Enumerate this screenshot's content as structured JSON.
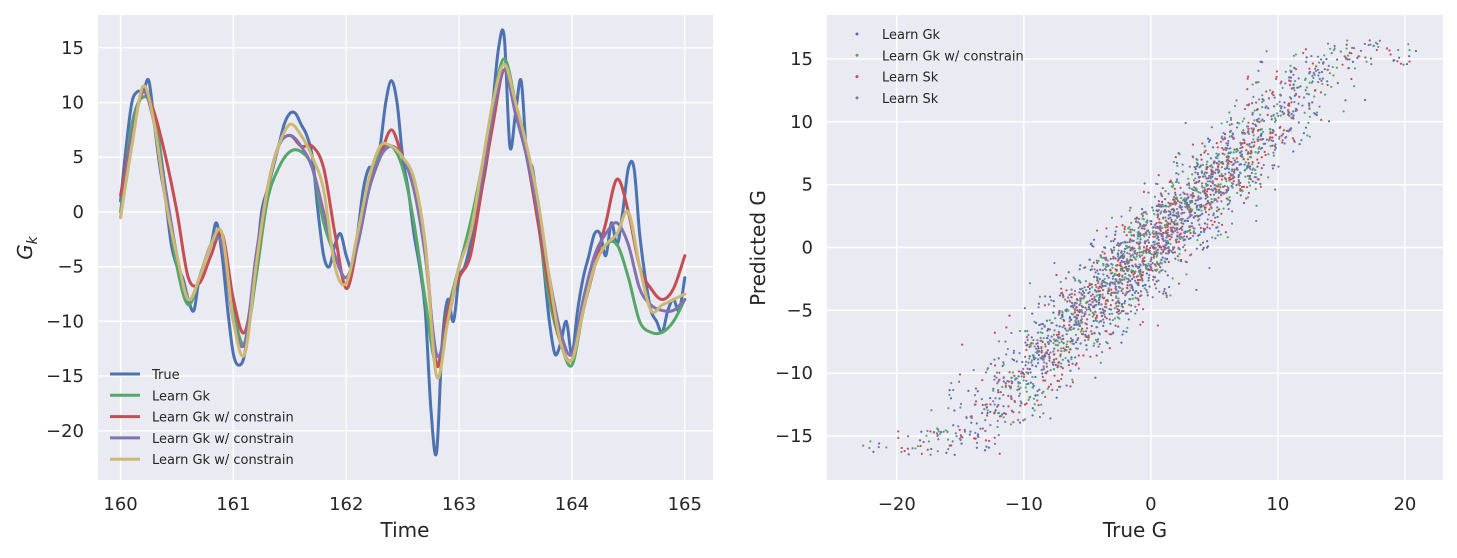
{
  "chart_data": [
    {
      "type": "line",
      "ylabel_main": "G",
      "ylabel_sub": "k",
      "xlabel": "Time",
      "xlim": [
        159.8,
        165.25
      ],
      "ylim": [
        -24.5,
        18
      ],
      "xticks": [
        160,
        161,
        162,
        163,
        164,
        165
      ],
      "yticks": [
        15,
        10,
        5,
        0,
        -5,
        -10,
        -15,
        -20
      ],
      "grid": true,
      "legend_position": "lower-left",
      "series": [
        {
          "name": "True",
          "color": "#4c72b0",
          "x": [
            160.0,
            160.05,
            160.1,
            160.15,
            160.2,
            160.25,
            160.3,
            160.35,
            160.4,
            160.45,
            160.5,
            160.55,
            160.6,
            160.65,
            160.7,
            160.8,
            160.85,
            160.9,
            160.95,
            161.0,
            161.05,
            161.1,
            161.15,
            161.2,
            161.25,
            161.3,
            161.35,
            161.4,
            161.45,
            161.5,
            161.55,
            161.6,
            161.65,
            161.7,
            161.75,
            161.8,
            161.85,
            161.9,
            161.95,
            162.0,
            162.05,
            162.1,
            162.15,
            162.2,
            162.25,
            162.3,
            162.35,
            162.4,
            162.45,
            162.5,
            162.55,
            162.6,
            162.65,
            162.7,
            162.75,
            162.8,
            162.85,
            162.9,
            162.95,
            163.0,
            163.05,
            163.1,
            163.15,
            163.2,
            163.25,
            163.3,
            163.35,
            163.4,
            163.45,
            163.5,
            163.55,
            163.6,
            163.65,
            163.7,
            163.75,
            163.8,
            163.85,
            163.9,
            163.95,
            164.0,
            164.05,
            164.1,
            164.15,
            164.2,
            164.25,
            164.3,
            164.35,
            164.4,
            164.45,
            164.5,
            164.55,
            164.6,
            164.65,
            164.7,
            164.75,
            164.8,
            164.85,
            164.9,
            164.95,
            165.0
          ],
          "y": [
            1,
            6,
            10,
            11,
            11,
            12,
            8,
            4,
            1,
            -3,
            -5,
            -6,
            -8,
            -9,
            -6,
            -3,
            -1,
            -4,
            -9,
            -13,
            -14,
            -13,
            -9,
            -5,
            0,
            2,
            4,
            6,
            8,
            9,
            9,
            8,
            7,
            5,
            0,
            -4,
            -5,
            -3,
            -2,
            -4,
            -5,
            -2,
            2,
            4,
            4,
            6,
            10,
            12,
            10,
            5,
            2,
            -2,
            -5,
            -9,
            -18,
            -22,
            -12,
            -8,
            -10,
            -6,
            -5,
            -3,
            -1,
            2,
            5,
            10,
            15,
            16,
            6,
            9,
            12,
            5,
            4,
            0,
            -5,
            -10,
            -13,
            -12,
            -10,
            -13,
            -9,
            -6,
            -4,
            -2,
            -2,
            -4,
            -1,
            -3,
            0,
            4,
            4,
            -2,
            -6,
            -9,
            -10,
            -11,
            -9,
            -8,
            -9,
            -6
          ]
        },
        {
          "name": "Learn Gk",
          "color": "#55a868",
          "x": [
            160.0,
            160.1,
            160.2,
            160.3,
            160.4,
            160.5,
            160.6,
            160.7,
            160.8,
            160.9,
            161.0,
            161.1,
            161.2,
            161.3,
            161.4,
            161.5,
            161.6,
            161.7,
            161.8,
            161.9,
            162.0,
            162.1,
            162.2,
            162.3,
            162.4,
            162.5,
            162.6,
            162.7,
            162.8,
            162.9,
            163.0,
            163.1,
            163.2,
            163.3,
            163.4,
            163.5,
            163.6,
            163.7,
            163.8,
            163.9,
            164.0,
            164.1,
            164.2,
            164.3,
            164.4,
            164.5,
            164.6,
            164.7,
            164.8,
            164.9,
            165.0
          ],
          "y": [
            0,
            8,
            10.5,
            9,
            2,
            -5,
            -8.5,
            -6,
            -3,
            -2,
            -9,
            -12,
            -6,
            1,
            4,
            5.5,
            5.5,
            4,
            -1,
            -4,
            -6,
            -3,
            2,
            5.5,
            6,
            4,
            -1,
            -8,
            -14,
            -9,
            -5,
            -1,
            4,
            10,
            14,
            10,
            5,
            -1,
            -8,
            -12,
            -14,
            -9,
            -5,
            -3,
            -3,
            -6,
            -10,
            -11,
            -11,
            -10,
            -8
          ]
        },
        {
          "name": "Learn Gk w/ constrain",
          "color": "#c44e52",
          "x": [
            160.0,
            160.1,
            160.2,
            160.3,
            160.4,
            160.5,
            160.6,
            160.7,
            160.8,
            160.9,
            161.0,
            161.1,
            161.2,
            161.3,
            161.4,
            161.5,
            161.6,
            161.7,
            161.8,
            161.9,
            162.0,
            162.1,
            162.2,
            162.3,
            162.4,
            162.5,
            162.6,
            162.7,
            162.8,
            162.9,
            163.0,
            163.1,
            163.2,
            163.3,
            163.4,
            163.5,
            163.6,
            163.7,
            163.8,
            163.9,
            164.0,
            164.1,
            164.2,
            164.3,
            164.4,
            164.5,
            164.6,
            164.7,
            164.8,
            164.9,
            165.0
          ],
          "y": [
            1.5,
            7,
            11,
            9,
            5,
            0,
            -6,
            -6.5,
            -4,
            -2,
            -8,
            -11,
            -5,
            2,
            6,
            7,
            6,
            6,
            4,
            -2,
            -7,
            -3,
            2,
            5,
            7.5,
            5,
            3,
            -3,
            -14,
            -9,
            -6,
            -4,
            2,
            8,
            13,
            9,
            5,
            -1,
            -7,
            -12,
            -13.5,
            -9,
            -5,
            -1,
            3,
            0,
            -5,
            -7,
            -8,
            -7,
            -4
          ]
        },
        {
          "name": "Learn Gk w/ constrain",
          "color": "#8172b2",
          "x": [
            160.0,
            160.1,
            160.2,
            160.3,
            160.4,
            160.5,
            160.6,
            160.7,
            160.8,
            160.9,
            161.0,
            161.1,
            161.2,
            161.3,
            161.4,
            161.5,
            161.6,
            161.7,
            161.8,
            161.9,
            162.0,
            162.1,
            162.2,
            162.3,
            162.4,
            162.5,
            162.6,
            162.7,
            162.8,
            162.9,
            163.0,
            163.1,
            163.2,
            163.3,
            163.4,
            163.5,
            163.6,
            163.7,
            163.8,
            163.9,
            164.0,
            164.1,
            164.2,
            164.3,
            164.4,
            164.5,
            164.6,
            164.7,
            164.8,
            164.9,
            165.0
          ],
          "y": [
            -0.5,
            7,
            11,
            8,
            2,
            -4,
            -8,
            -6,
            -3,
            -3,
            -10,
            -12,
            -4,
            2,
            6,
            7,
            6,
            4,
            0,
            -4,
            -6,
            -3,
            2,
            5,
            6,
            5,
            2,
            -4,
            -13,
            -10,
            -5,
            -2,
            3,
            9,
            13,
            9,
            5,
            0,
            -6,
            -11,
            -13,
            -8,
            -4,
            -2,
            -1,
            -3,
            -7,
            -8.5,
            -9,
            -9,
            -8
          ]
        },
        {
          "name": "Learn Gk w/ constrain",
          "color": "#ccb974",
          "x": [
            160.0,
            160.1,
            160.2,
            160.3,
            160.4,
            160.5,
            160.6,
            160.7,
            160.8,
            160.9,
            161.0,
            161.1,
            161.2,
            161.3,
            161.4,
            161.5,
            161.6,
            161.7,
            161.8,
            161.9,
            162.0,
            162.1,
            162.2,
            162.3,
            162.4,
            162.5,
            162.6,
            162.7,
            162.8,
            162.9,
            163.0,
            163.1,
            163.2,
            163.3,
            163.4,
            163.5,
            163.6,
            163.7,
            163.8,
            163.9,
            164.0,
            164.1,
            164.2,
            164.3,
            164.4,
            164.5,
            164.6,
            164.7,
            164.8,
            164.9,
            165.0
          ],
          "y": [
            -0.5,
            6,
            11.5,
            8,
            1,
            -4,
            -8,
            -6,
            -3,
            -2,
            -10,
            -13,
            -5,
            2,
            6,
            8,
            7,
            5,
            2,
            -5,
            -6.5,
            -2,
            3,
            6,
            6,
            5,
            3,
            -3,
            -15,
            -10,
            -5,
            -2,
            4,
            10,
            13.5,
            10,
            6,
            1,
            -6,
            -12,
            -13.5,
            -9,
            -5,
            -3,
            -2,
            0,
            -5,
            -9,
            -8.5,
            -8,
            -7.5
          ]
        }
      ]
    },
    {
      "type": "scatter",
      "xlabel": "True G",
      "ylabel": "Predicted G",
      "xlim": [
        -25.5,
        23
      ],
      "ylim": [
        -18.5,
        18.5
      ],
      "xticks": [
        -20,
        -10,
        0,
        10,
        20
      ],
      "yticks": [
        15,
        10,
        5,
        0,
        -5,
        -10,
        -15
      ],
      "grid": true,
      "legend_position": "top-left",
      "series": [
        {
          "name": "Learn Gk",
          "color": "#4c72b0"
        },
        {
          "name": "Learn Gk w/ constrain",
          "color": "#55a868"
        },
        {
          "name": "Learn Sk",
          "color": "#c44e52"
        },
        {
          "name": "Learn Sk",
          "color": "#8172b2"
        }
      ],
      "relation": {
        "slope": 1.0,
        "intercept": 0.0,
        "x_range": [
          -23,
          21
        ]
      }
    }
  ]
}
